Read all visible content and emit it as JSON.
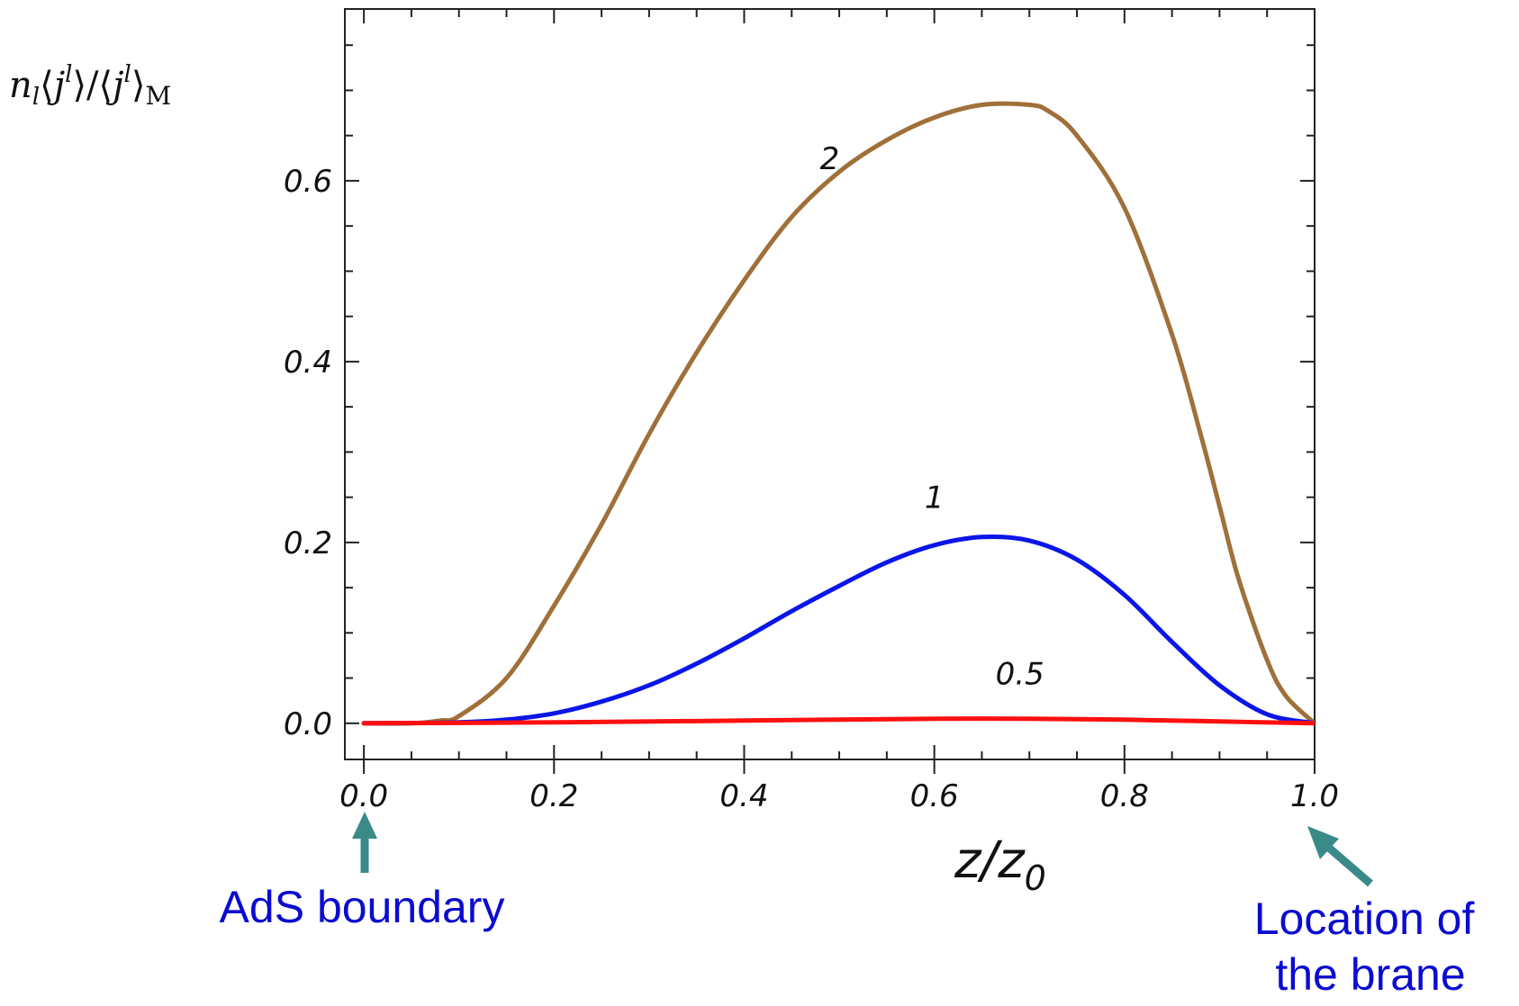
{
  "chart_data": {
    "type": "line",
    "ylabel": {
      "base": "n",
      "base_sub": "l",
      "lbr": "⟨",
      "var": "j",
      "sup": "l",
      "rbr": "⟩",
      "slash": "/",
      "sub": "M"
    },
    "xlabel": {
      "base": "z/z",
      "sub": "0"
    },
    "xlim": [
      -0.02,
      1.0
    ],
    "ylim": [
      -0.04,
      0.79
    ],
    "grid": false,
    "xticks": [
      0.0,
      0.2,
      0.4,
      0.6,
      0.8,
      1.0
    ],
    "xtick_labels": [
      "0.0",
      "0.2",
      "0.4",
      "0.6",
      "0.8",
      "1.0"
    ],
    "yticks": [
      0.0,
      0.2,
      0.4,
      0.6
    ],
    "ytick_labels": [
      "0.0",
      "0.2",
      "0.4",
      "0.6"
    ],
    "series": [
      {
        "name": "2",
        "color": "#a0703a",
        "x": [
          0.0,
          0.05,
          0.08,
          0.1,
          0.15,
          0.2,
          0.25,
          0.3,
          0.35,
          0.4,
          0.45,
          0.5,
          0.55,
          0.6,
          0.65,
          0.7,
          0.72,
          0.75,
          0.8,
          0.85,
          0.88,
          0.9,
          0.92,
          0.95,
          0.97,
          1.0
        ],
        "y": [
          0.0,
          0.0,
          0.003,
          0.008,
          0.05,
          0.13,
          0.22,
          0.32,
          0.41,
          0.49,
          0.56,
          0.61,
          0.645,
          0.67,
          0.684,
          0.684,
          0.677,
          0.65,
          0.57,
          0.43,
          0.32,
          0.24,
          0.16,
          0.07,
          0.03,
          0.0
        ]
      },
      {
        "name": "1",
        "color": "#0a16e8",
        "x": [
          0.0,
          0.1,
          0.15,
          0.2,
          0.25,
          0.3,
          0.35,
          0.4,
          0.45,
          0.5,
          0.55,
          0.6,
          0.65,
          0.7,
          0.75,
          0.8,
          0.85,
          0.9,
          0.95,
          1.0
        ],
        "y": [
          0.0,
          0.001,
          0.004,
          0.011,
          0.024,
          0.042,
          0.066,
          0.094,
          0.124,
          0.152,
          0.178,
          0.197,
          0.206,
          0.202,
          0.181,
          0.142,
          0.09,
          0.042,
          0.01,
          0.0
        ]
      },
      {
        "name": "0.5",
        "color": "#ff1010",
        "x": [
          0.0,
          0.2,
          0.4,
          0.6,
          0.7,
          0.8,
          0.9,
          1.0
        ],
        "y": [
          0.0,
          0.001,
          0.003,
          0.005,
          0.005,
          0.004,
          0.002,
          0.0
        ]
      }
    ],
    "curve_labels": [
      {
        "text": "2",
        "x": 0.49,
        "y": 0.625
      },
      {
        "text": "1",
        "x": 0.6,
        "y": 0.25
      },
      {
        "text": "0.5",
        "x": 0.69,
        "y": 0.055
      }
    ]
  },
  "annotations": {
    "left": "AdS boundary",
    "right_line1": "Location of",
    "right_line2": "the brane",
    "arrow_color": "#3a8a8a"
  }
}
